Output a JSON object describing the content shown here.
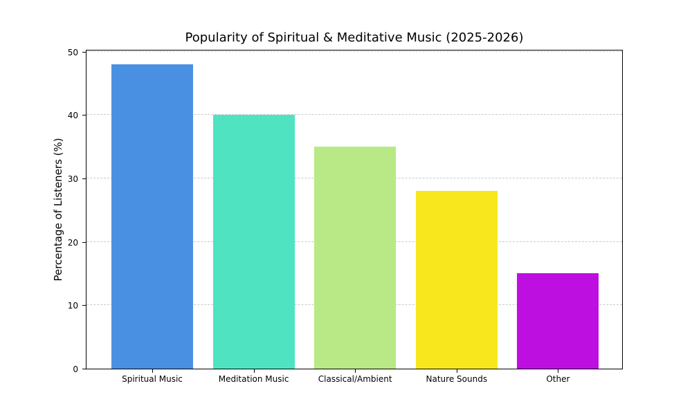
{
  "chart_data": {
    "type": "bar",
    "title": "Popularity of Spiritual & Meditative Music (2025-2026)",
    "xlabel": "",
    "ylabel": "Percentage of Listeners (%)",
    "categories": [
      "Spiritual Music",
      "Meditation Music",
      "Classical/Ambient",
      "Nature Sounds",
      "Other"
    ],
    "values": [
      48,
      40,
      35,
      28,
      15
    ],
    "colors": [
      "#4a90e2",
      "#50e3c2",
      "#b8e986",
      "#f8e71c",
      "#bd10e0"
    ],
    "ylim": [
      0,
      50
    ],
    "yticks": [
      0,
      10,
      20,
      30,
      40,
      50
    ],
    "grid": "y-dashed",
    "legend": null
  }
}
